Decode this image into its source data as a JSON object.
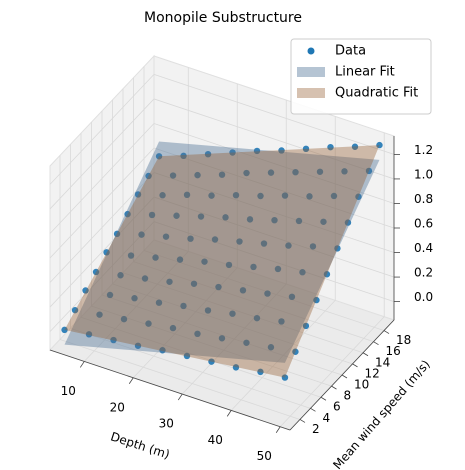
{
  "chart_data": {
    "type": "scatter3d",
    "title": "Monopile Substructure",
    "xlabel": "Depth (m)",
    "ylabel": "Mean wind speed (m/s)",
    "xlim": [
      3,
      52
    ],
    "ylim": [
      0.1,
      19.9
    ],
    "zlim": [
      -0.15,
      1.35
    ],
    "xticks": [
      10,
      20,
      30,
      40,
      50
    ],
    "yticks": [
      2,
      4,
      6,
      8,
      10,
      12,
      14,
      16,
      18
    ],
    "zticks": [
      {
        "value": 0,
        "label": "0.0"
      },
      {
        "value": 0.2,
        "label": "0.2"
      },
      {
        "value": 0.4,
        "label": "0.4"
      },
      {
        "value": 0.6,
        "label": "0.6"
      },
      {
        "value": 0.8,
        "label": "0.8"
      },
      {
        "value": 1,
        "label": "1.0"
      },
      {
        "value": 1.2,
        "label": "1.2"
      }
    ],
    "grid": true,
    "legend": "upper right",
    "series": [
      {
        "name": "Data",
        "kind": "points",
        "color": "#1f77b4",
        "alpha": 0.9,
        "x": [
          5,
          10,
          15,
          20,
          25,
          30,
          35,
          40,
          45,
          50
        ],
        "y": [
          1,
          3,
          5,
          7,
          9,
          11,
          13,
          15,
          17,
          19
        ],
        "z": [
          [
            0.0,
            0.03,
            0.05,
            0.07,
            0.1,
            0.12,
            0.14,
            0.16,
            0.19,
            0.21
          ],
          [
            0.07,
            0.1,
            0.13,
            0.16,
            0.19,
            0.21,
            0.24,
            0.27,
            0.3,
            0.33
          ],
          [
            0.14,
            0.17,
            0.21,
            0.24,
            0.28,
            0.31,
            0.35,
            0.38,
            0.42,
            0.45
          ],
          [
            0.2,
            0.24,
            0.28,
            0.32,
            0.37,
            0.41,
            0.45,
            0.49,
            0.53,
            0.57
          ],
          [
            0.27,
            0.31,
            0.36,
            0.41,
            0.46,
            0.5,
            0.55,
            0.6,
            0.64,
            0.69
          ],
          [
            0.33,
            0.39,
            0.44,
            0.49,
            0.55,
            0.6,
            0.65,
            0.7,
            0.76,
            0.81
          ],
          [
            0.4,
            0.46,
            0.52,
            0.58,
            0.64,
            0.69,
            0.75,
            0.81,
            0.87,
            0.93
          ],
          [
            0.47,
            0.53,
            0.6,
            0.66,
            0.73,
            0.79,
            0.86,
            0.92,
            0.99,
            1.05
          ],
          [
            0.53,
            0.6,
            0.67,
            0.74,
            0.82,
            0.89,
            0.96,
            1.03,
            1.1,
            1.17
          ],
          [
            0.6,
            0.67,
            0.75,
            0.83,
            0.91,
            0.98,
            1.06,
            1.14,
            1.21,
            1.29
          ]
        ]
      },
      {
        "name": "Linear Fit",
        "kind": "surface",
        "color": "#4f7396",
        "alpha": 0.42,
        "x": [
          5,
          50
        ],
        "y": [
          1,
          19
        ],
        "z": [
          [
            -0.12,
            0.33
          ],
          [
            0.72,
            1.17
          ]
        ]
      },
      {
        "name": "Quadratic Fit",
        "kind": "surface",
        "color": "#935d2f",
        "alpha": 0.38,
        "x": [
          5,
          50
        ],
        "y": [
          1,
          19
        ],
        "z": [
          [
            0.0,
            0.21
          ],
          [
            0.6,
            1.29
          ]
        ]
      }
    ]
  }
}
